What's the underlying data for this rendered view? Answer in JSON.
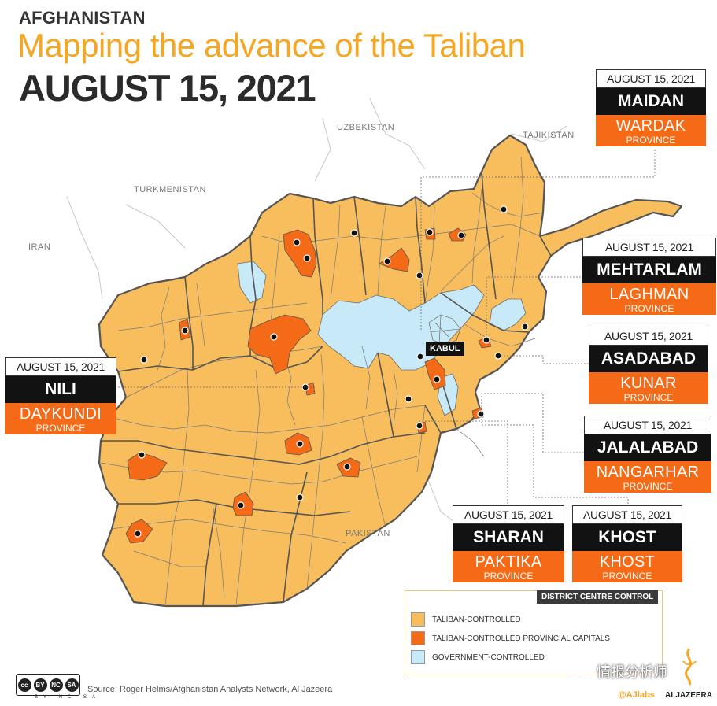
{
  "header": {
    "kicker": "AFGHANISTAN",
    "headline": "Mapping the advance of the Taliban",
    "date": "AUGUST 15, 2021"
  },
  "neighbors": [
    "UZBEKISTAN",
    "TAJIKISTAN",
    "TURKMENISTAN",
    "IRAN",
    "PAKISTAN"
  ],
  "capital_label": "KABUL",
  "colors": {
    "taliban": "#f8bd5c",
    "taliban_capital": "#f46a16",
    "government": "#c8e9f7",
    "border": "#6b6b6b"
  },
  "callouts": [
    {
      "date": "AUGUST 15, 2021",
      "city": "MAIDAN",
      "province": "WARDAK",
      "province_word": "PROVINCE"
    },
    {
      "date": "AUGUST 15, 2021",
      "city": "MEHTARLAM",
      "province": "LAGHMAN",
      "province_word": "PROVINCE"
    },
    {
      "date": "AUGUST 15, 2021",
      "city": "ASADABAD",
      "province": "KUNAR",
      "province_word": "PROVINCE"
    },
    {
      "date": "AUGUST 15, 2021",
      "city": "JALALABAD",
      "province": "NANGARHAR",
      "province_word": "PROVINCE"
    },
    {
      "date": "AUGUST 15, 2021",
      "city": "NILI",
      "province": "DAYKUNDI",
      "province_word": "PROVINCE"
    },
    {
      "date": "AUGUST 15, 2021",
      "city": "SHARAN",
      "province": "PAKTIKA",
      "province_word": "PROVINCE"
    },
    {
      "date": "AUGUST 15, 2021",
      "city": "KHOST",
      "province": "KHOST",
      "province_word": "PROVINCE"
    }
  ],
  "legend": {
    "title": "DISTRICT CENTRE CONTROL",
    "items": [
      {
        "label": "TALIBAN-CONTROLLED",
        "color": "#f8bd5c"
      },
      {
        "label": "TALIBAN-CONTROLLED PROVINCIAL CAPITALS",
        "color": "#f46a16"
      },
      {
        "label": "GOVERNMENT-CONTROLLED",
        "color": "#c8e9f7"
      }
    ]
  },
  "footer": {
    "source": "Source: Roger Helms/Afghanistan Analysts Network, Al Jazeera",
    "license_badges": [
      "cc",
      "BY",
      "NC",
      "SA"
    ],
    "license_labels": "BY NC SA",
    "brand_labs": "@AJlabs",
    "brand_name": "ALJAZEERA",
    "watermark": "情报分析师"
  }
}
